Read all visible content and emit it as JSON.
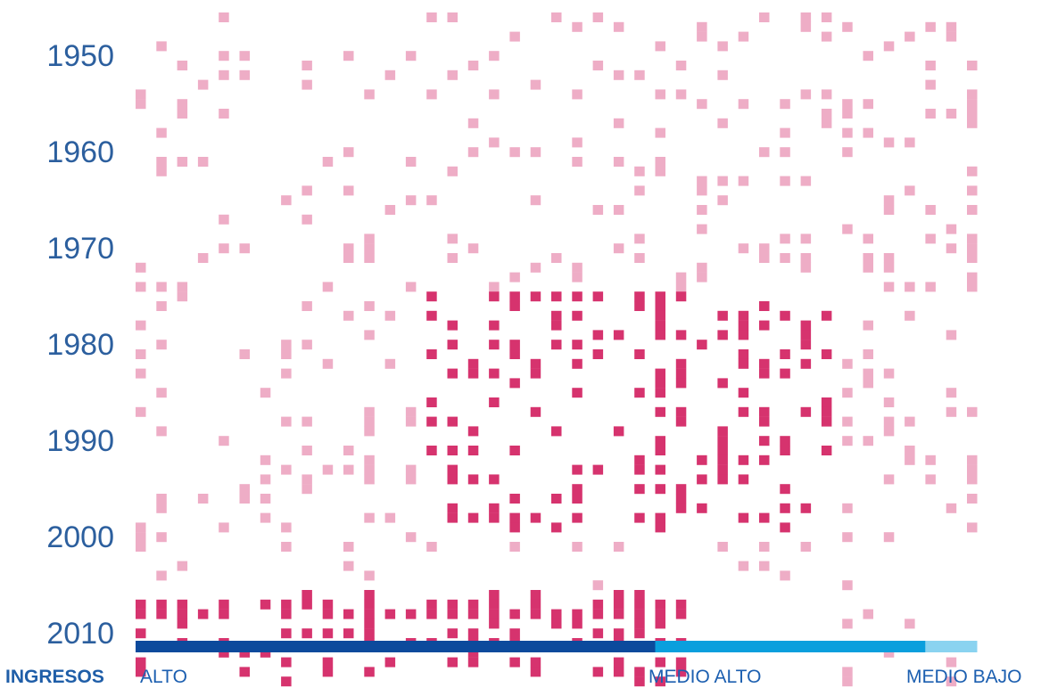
{
  "chart_data": {
    "type": "heatmap",
    "y_tick_labels": [
      "1950",
      "1960",
      "1970",
      "1980",
      "1990",
      "2000",
      "2010"
    ],
    "y_range": [
      1946,
      2015
    ],
    "columns": 41,
    "colors": {
      "light": "#eeadc6",
      "dark": "#d6336e",
      "band_alto": "#0c4a9c",
      "band_medio_alto": "#0a9fdd",
      "band_medio_bajo": "#8ad3f0"
    },
    "income_groups": [
      {
        "label": "ALTO",
        "columns": [
          0,
          24
        ]
      },
      {
        "label": "MEDIO ALTO",
        "columns": [
          25,
          37
        ]
      },
      {
        "label": "MEDIO BAJO",
        "columns": [
          38,
          40
        ]
      }
    ],
    "dark_region": {
      "years": [
        1975,
        1999
      ],
      "columns": [
        14,
        33
      ]
    },
    "recent_dark_region": {
      "years": [
        2006,
        2015
      ],
      "columns": [
        0,
        26
      ]
    }
  },
  "legend": {
    "title": "INGRESOS",
    "alto": "ALTO",
    "medio_alto": "MEDIO ALTO",
    "medio_bajo": "MEDIO BAJO"
  }
}
